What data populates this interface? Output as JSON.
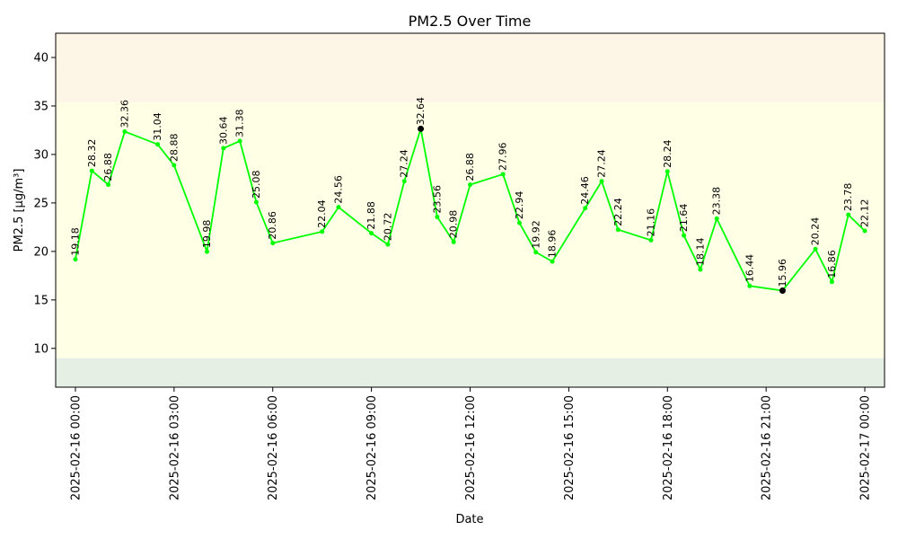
{
  "chart_data": {
    "type": "line",
    "title": "PM2.5 Over Time",
    "xlabel": "Date",
    "ylabel": "PM2.5 [µg/m³]",
    "ylim": [
      6.0,
      42.5
    ],
    "xlim": [
      "2025-02-15 23:24",
      "2025-02-17 00:36"
    ],
    "y_ticks": [
      10,
      15,
      20,
      25,
      30,
      35,
      40
    ],
    "x_ticks": [
      "2025-02-16 00:00",
      "2025-02-16 03:00",
      "2025-02-16 06:00",
      "2025-02-16 09:00",
      "2025-02-16 12:00",
      "2025-02-16 15:00",
      "2025-02-16 18:00",
      "2025-02-16 21:00",
      "2025-02-17 00:00"
    ],
    "bands": [
      {
        "from": 6.0,
        "to": 9.0,
        "color": "#e6efe3"
      },
      {
        "from": 9.0,
        "to": 35.4,
        "color": "#ffffe6"
      },
      {
        "from": 35.4,
        "to": 42.5,
        "color": "#fdf5e6"
      }
    ],
    "series": [
      {
        "line_color": "#00ff00",
        "points": [
          {
            "x": "2025-02-16 00:00",
            "y": 19.18
          },
          {
            "x": "2025-02-16 00:30",
            "y": 28.32
          },
          {
            "x": "2025-02-16 01:00",
            "y": 26.88
          },
          {
            "x": "2025-02-16 01:30",
            "y": 32.36
          },
          {
            "x": "2025-02-16 02:30",
            "y": 31.04
          },
          {
            "x": "2025-02-16 03:00",
            "y": 28.88
          },
          {
            "x": "2025-02-16 04:00",
            "y": 19.98
          },
          {
            "x": "2025-02-16 04:30",
            "y": 30.64
          },
          {
            "x": "2025-02-16 05:00",
            "y": 31.38
          },
          {
            "x": "2025-02-16 05:30",
            "y": 25.08
          },
          {
            "x": "2025-02-16 06:00",
            "y": 20.86
          },
          {
            "x": "2025-02-16 07:30",
            "y": 22.04
          },
          {
            "x": "2025-02-16 08:00",
            "y": 24.56
          },
          {
            "x": "2025-02-16 09:00",
            "y": 21.88
          },
          {
            "x": "2025-02-16 09:30",
            "y": 20.72
          },
          {
            "x": "2025-02-16 10:00",
            "y": 27.24
          },
          {
            "x": "2025-02-16 10:30",
            "y": 32.64,
            "marker": "max"
          },
          {
            "x": "2025-02-16 11:00",
            "y": 23.56
          },
          {
            "x": "2025-02-16 11:30",
            "y": 20.98
          },
          {
            "x": "2025-02-16 12:00",
            "y": 26.88
          },
          {
            "x": "2025-02-16 13:00",
            "y": 27.96
          },
          {
            "x": "2025-02-16 13:30",
            "y": 22.94
          },
          {
            "x": "2025-02-16 14:00",
            "y": 19.92
          },
          {
            "x": "2025-02-16 14:30",
            "y": 18.96
          },
          {
            "x": "2025-02-16 15:30",
            "y": 24.46
          },
          {
            "x": "2025-02-16 16:00",
            "y": 27.24
          },
          {
            "x": "2025-02-16 16:30",
            "y": 22.24
          },
          {
            "x": "2025-02-16 17:30",
            "y": 21.16
          },
          {
            "x": "2025-02-16 18:00",
            "y": 28.24
          },
          {
            "x": "2025-02-16 18:30",
            "y": 21.64
          },
          {
            "x": "2025-02-16 19:00",
            "y": 18.14
          },
          {
            "x": "2025-02-16 19:30",
            "y": 23.38
          },
          {
            "x": "2025-02-16 20:30",
            "y": 16.44
          },
          {
            "x": "2025-02-16 21:30",
            "y": 15.96,
            "marker": "min"
          },
          {
            "x": "2025-02-16 22:30",
            "y": 20.24
          },
          {
            "x": "2025-02-16 23:00",
            "y": 16.86
          },
          {
            "x": "2025-02-16 23:30",
            "y": 23.78
          },
          {
            "x": "2025-02-17 00:00",
            "y": 22.12
          }
        ]
      }
    ],
    "grid": false,
    "extreme_marker_color": "#000000"
  }
}
